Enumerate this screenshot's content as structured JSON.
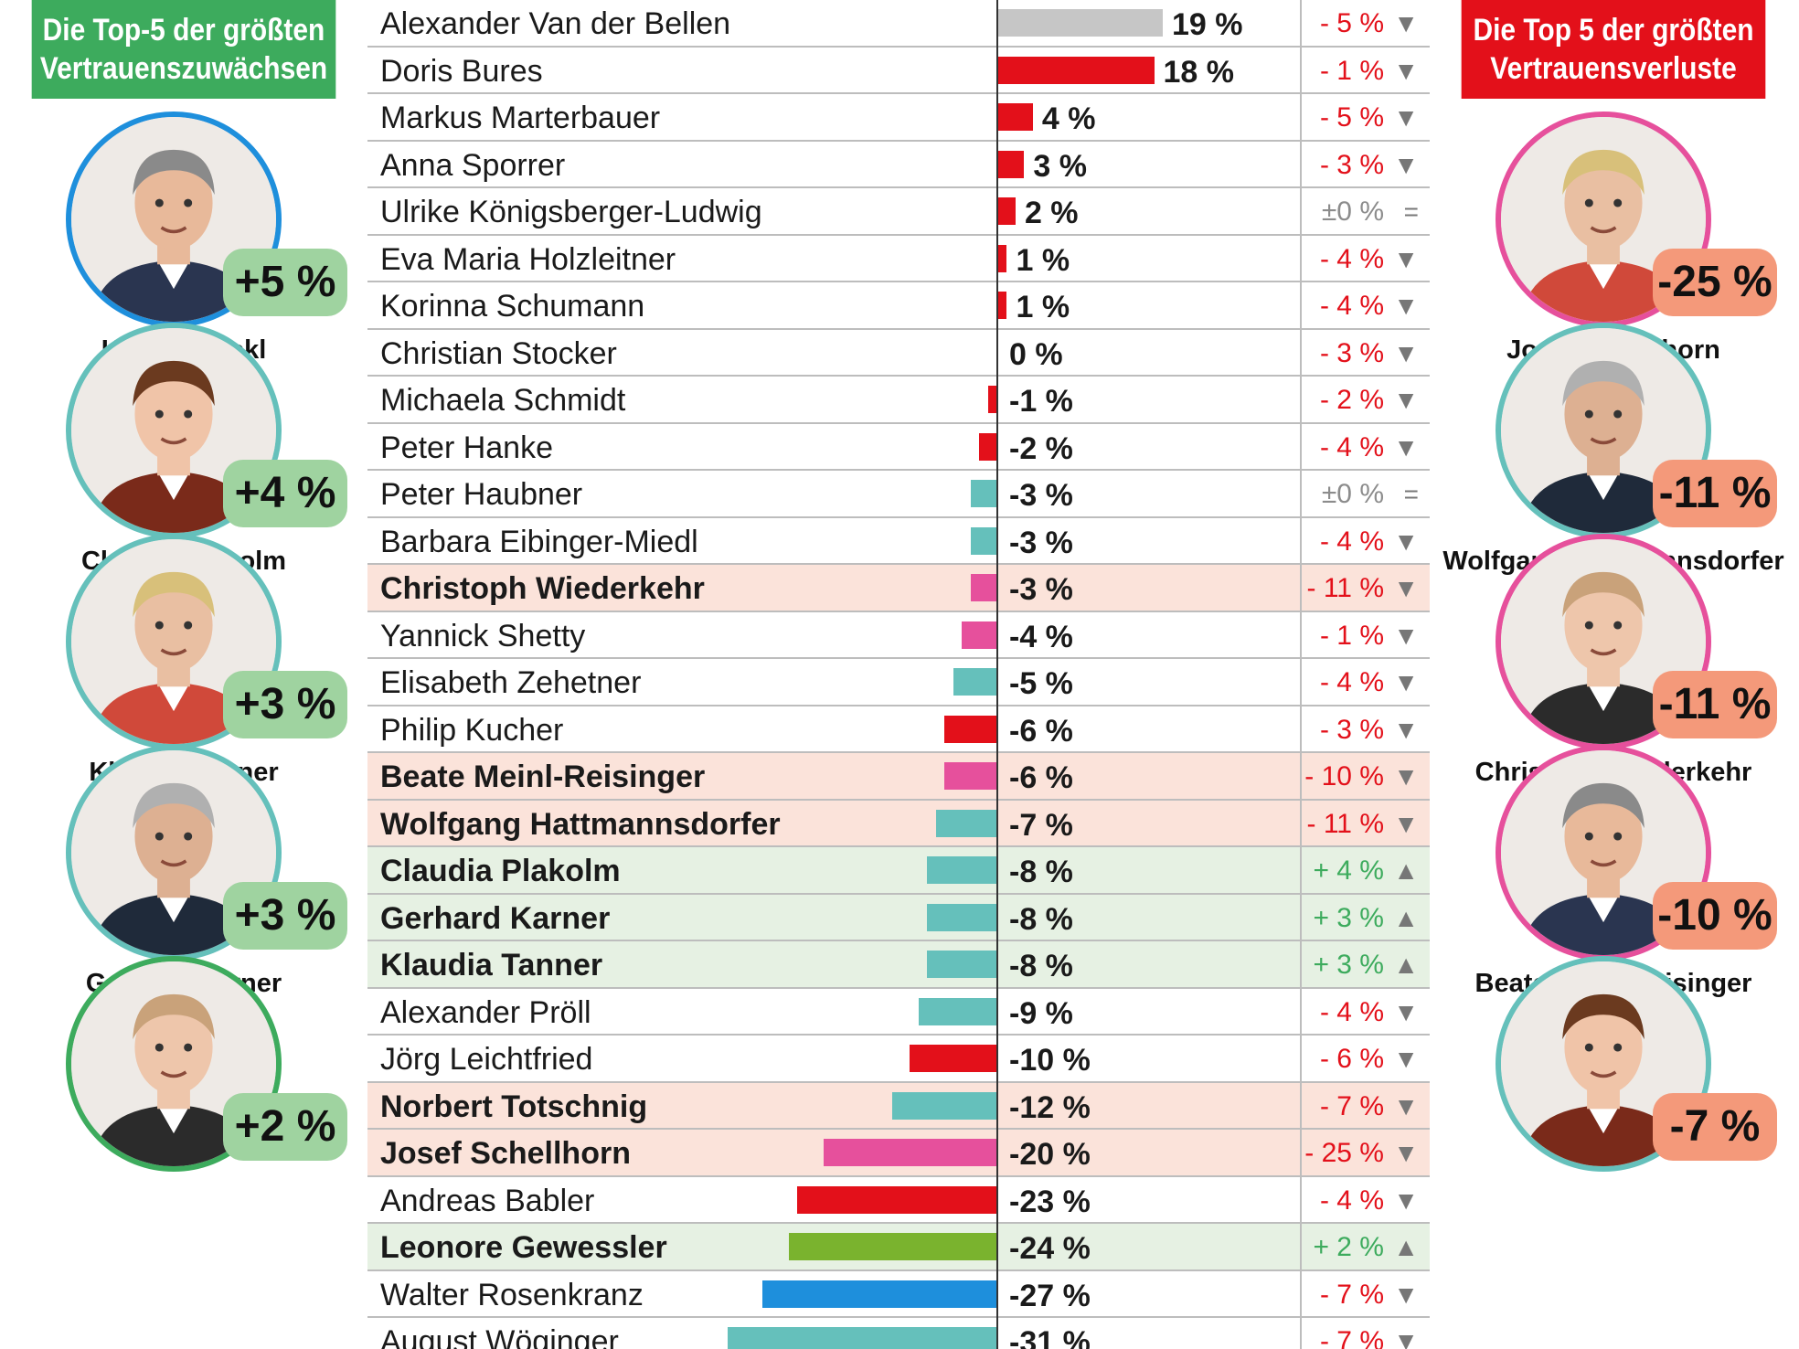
{
  "colors": {
    "green_header": "#3dab5d",
    "red_header": "#e3101a",
    "gain_badge": "#9fd3a0",
    "loss_badge": "#f4997a",
    "row_pink": "#fbe3da",
    "row_green": "#e6f1e3",
    "bar_grey": "#c6c6c6",
    "bar_red": "#e3101a",
    "bar_teal": "#65c0bb",
    "bar_pink": "#e6509c",
    "bar_green": "#7ab32e",
    "bar_blue": "#1e8fdc",
    "text_red": "#e3101a",
    "text_green": "#3dab5d",
    "text_grey": "#8c8c8c"
  },
  "left_panel": {
    "header": [
      "Die Top-5 der größten",
      "Vertrauenszuwächsen"
    ],
    "people": [
      {
        "name": "Herbert Kickl",
        "change": "+5 %",
        "ring": "#1e8fdc"
      },
      {
        "name": "Claudia Plakolm",
        "change": "+4 %",
        "ring": "#65c0bb"
      },
      {
        "name": "Klaudia Tanner",
        "change": "+3 %",
        "ring": "#65c0bb"
      },
      {
        "name": "Gerhard Karner",
        "change": "+3 %",
        "ring": "#65c0bb"
      },
      {
        "name": "",
        "change": "+2 %",
        "ring": "#3dab5d"
      }
    ]
  },
  "right_panel": {
    "header": [
      "Die Top 5 der größten",
      "Vertrauensverluste"
    ],
    "people": [
      {
        "name": "Josef Schellhorn",
        "change": "-25 %",
        "ring": "#e6509c"
      },
      {
        "name": "Wolfgang Hattmannsdorfer",
        "change": "-11 %",
        "ring": "#65c0bb"
      },
      {
        "name": "Christoph Wiederkehr",
        "change": "-11 %",
        "ring": "#e6509c"
      },
      {
        "name": "Beate Meinl-Reisinger",
        "change": "-10 %",
        "ring": "#e6509c"
      },
      {
        "name": "",
        "change": "-7 %",
        "ring": "#65c0bb"
      }
    ]
  },
  "chart_data": {
    "type": "bar",
    "orientation": "horizontal",
    "value_unit": "%",
    "bar_axis_range": [
      -31,
      19
    ],
    "rows": [
      {
        "name": "Alexander Van der Bellen",
        "value": 19,
        "label": "19 %",
        "change": "- 5 %",
        "trend": "down",
        "color": "#c6c6c6",
        "highlight": "none"
      },
      {
        "name": "Doris Bures",
        "value": 18,
        "label": "18 %",
        "change": "- 1 %",
        "trend": "down",
        "color": "#e3101a",
        "highlight": "none"
      },
      {
        "name": "Markus Marterbauer",
        "value": 4,
        "label": "4 %",
        "change": "- 5 %",
        "trend": "down",
        "color": "#e3101a",
        "highlight": "none"
      },
      {
        "name": "Anna Sporrer",
        "value": 3,
        "label": "3 %",
        "change": "- 3 %",
        "trend": "down",
        "color": "#e3101a",
        "highlight": "none"
      },
      {
        "name": "Ulrike Königsberger-Ludwig",
        "value": 2,
        "label": "2 %",
        "change": "±0 %",
        "trend": "same",
        "color": "#e3101a",
        "highlight": "none"
      },
      {
        "name": "Eva Maria Holzleitner",
        "value": 1,
        "label": "1 %",
        "change": "- 4 %",
        "trend": "down",
        "color": "#e3101a",
        "highlight": "none"
      },
      {
        "name": "Korinna Schumann",
        "value": 1,
        "label": "1 %",
        "change": "- 4 %",
        "trend": "down",
        "color": "#e3101a",
        "highlight": "none"
      },
      {
        "name": "Christian Stocker",
        "value": 0,
        "label": "0 %",
        "change": "- 3 %",
        "trend": "down",
        "color": "#65c0bb",
        "highlight": "none"
      },
      {
        "name": "Michaela Schmidt",
        "value": -1,
        "label": "-1 %",
        "change": "- 2 %",
        "trend": "down",
        "color": "#e3101a",
        "highlight": "none"
      },
      {
        "name": "Peter Hanke",
        "value": -2,
        "label": "-2 %",
        "change": "- 4 %",
        "trend": "down",
        "color": "#e3101a",
        "highlight": "none"
      },
      {
        "name": "Peter Haubner",
        "value": -3,
        "label": "-3 %",
        "change": "±0 %",
        "trend": "same",
        "color": "#65c0bb",
        "highlight": "none"
      },
      {
        "name": "Barbara Eibinger-Miedl",
        "value": -3,
        "label": "-3 %",
        "change": "- 4 %",
        "trend": "down",
        "color": "#65c0bb",
        "highlight": "none"
      },
      {
        "name": "Christoph Wiederkehr",
        "value": -3,
        "label": "-3 %",
        "change": "- 11 %",
        "trend": "down",
        "color": "#e6509c",
        "highlight": "loss"
      },
      {
        "name": "Yannick Shetty",
        "value": -4,
        "label": "-4 %",
        "change": "- 1 %",
        "trend": "down",
        "color": "#e6509c",
        "highlight": "none"
      },
      {
        "name": "Elisabeth Zehetner",
        "value": -5,
        "label": "-5 %",
        "change": "- 4 %",
        "trend": "down",
        "color": "#65c0bb",
        "highlight": "none"
      },
      {
        "name": "Philip Kucher",
        "value": -6,
        "label": "-6 %",
        "change": "- 3 %",
        "trend": "down",
        "color": "#e3101a",
        "highlight": "none"
      },
      {
        "name": "Beate Meinl-Reisinger",
        "value": -6,
        "label": "-6 %",
        "change": "- 10 %",
        "trend": "down",
        "color": "#e6509c",
        "highlight": "loss"
      },
      {
        "name": "Wolfgang Hattmannsdorfer",
        "value": -7,
        "label": "-7 %",
        "change": "- 11 %",
        "trend": "down",
        "color": "#65c0bb",
        "highlight": "loss"
      },
      {
        "name": "Claudia Plakolm",
        "value": -8,
        "label": "-8 %",
        "change": "+ 4 %",
        "trend": "up",
        "color": "#65c0bb",
        "highlight": "gain"
      },
      {
        "name": "Gerhard Karner",
        "value": -8,
        "label": "-8 %",
        "change": "+ 3 %",
        "trend": "up",
        "color": "#65c0bb",
        "highlight": "gain"
      },
      {
        "name": "Klaudia Tanner",
        "value": -8,
        "label": "-8 %",
        "change": "+ 3 %",
        "trend": "up",
        "color": "#65c0bb",
        "highlight": "gain"
      },
      {
        "name": "Alexander Pröll",
        "value": -9,
        "label": "-9 %",
        "change": "- 4 %",
        "trend": "down",
        "color": "#65c0bb",
        "highlight": "none"
      },
      {
        "name": "Jörg Leichtfried",
        "value": -10,
        "label": "-10 %",
        "change": "- 6 %",
        "trend": "down",
        "color": "#e3101a",
        "highlight": "none"
      },
      {
        "name": "Norbert Totschnig",
        "value": -12,
        "label": "-12 %",
        "change": "- 7 %",
        "trend": "down",
        "color": "#65c0bb",
        "highlight": "loss"
      },
      {
        "name": "Josef Schellhorn",
        "value": -20,
        "label": "-20 %",
        "change": "- 25 %",
        "trend": "down",
        "color": "#e6509c",
        "highlight": "loss"
      },
      {
        "name": "Andreas Babler",
        "value": -23,
        "label": "-23 %",
        "change": "- 4 %",
        "trend": "down",
        "color": "#e3101a",
        "highlight": "none"
      },
      {
        "name": "Leonore Gewessler",
        "value": -24,
        "label": "-24 %",
        "change": "+ 2 %",
        "trend": "up",
        "color": "#7ab32e",
        "highlight": "gain"
      },
      {
        "name": "Walter Rosenkranz",
        "value": -27,
        "label": "-27 %",
        "change": "- 7 %",
        "trend": "down",
        "color": "#1e8fdc",
        "highlight": "none"
      },
      {
        "name": "August Wöginger",
        "value": -31,
        "label": "-31 %",
        "change": "- 7 %",
        "trend": "down",
        "color": "#65c0bb",
        "highlight": "none"
      }
    ]
  }
}
